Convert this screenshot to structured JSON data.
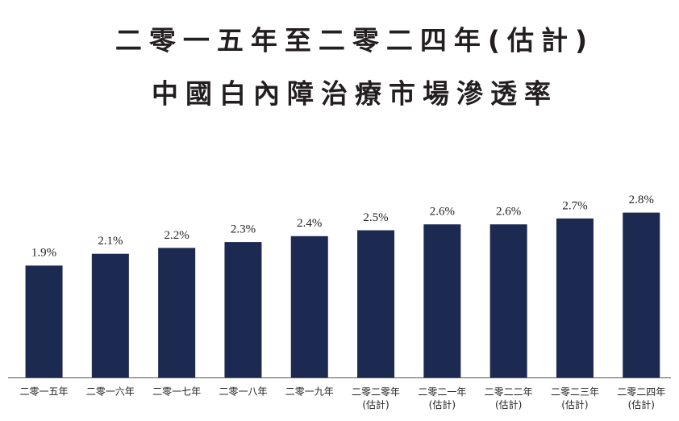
{
  "chart_data": {
    "type": "bar",
    "title": "二零一五年至二零二四年(估計)",
    "subtitle": "中國白內障治療市場滲透率",
    "categories": [
      "二零一五年",
      "二零一六年",
      "二零一七年",
      "二零一八年",
      "二零一九年",
      "二零二零年\n(估計)",
      "二零二一年\n(估計)",
      "二零二二年\n(估計)",
      "二零二三年\n(估計)",
      "二零二四年\n(估計)"
    ],
    "values": [
      1.9,
      2.1,
      2.2,
      2.3,
      2.4,
      2.5,
      2.6,
      2.6,
      2.7,
      2.8
    ],
    "value_labels": [
      "1.9%",
      "2.1%",
      "2.2%",
      "2.3%",
      "2.4%",
      "2.5%",
      "2.6%",
      "2.6%",
      "2.7%",
      "2.8%"
    ],
    "color": "#1c2951"
  }
}
